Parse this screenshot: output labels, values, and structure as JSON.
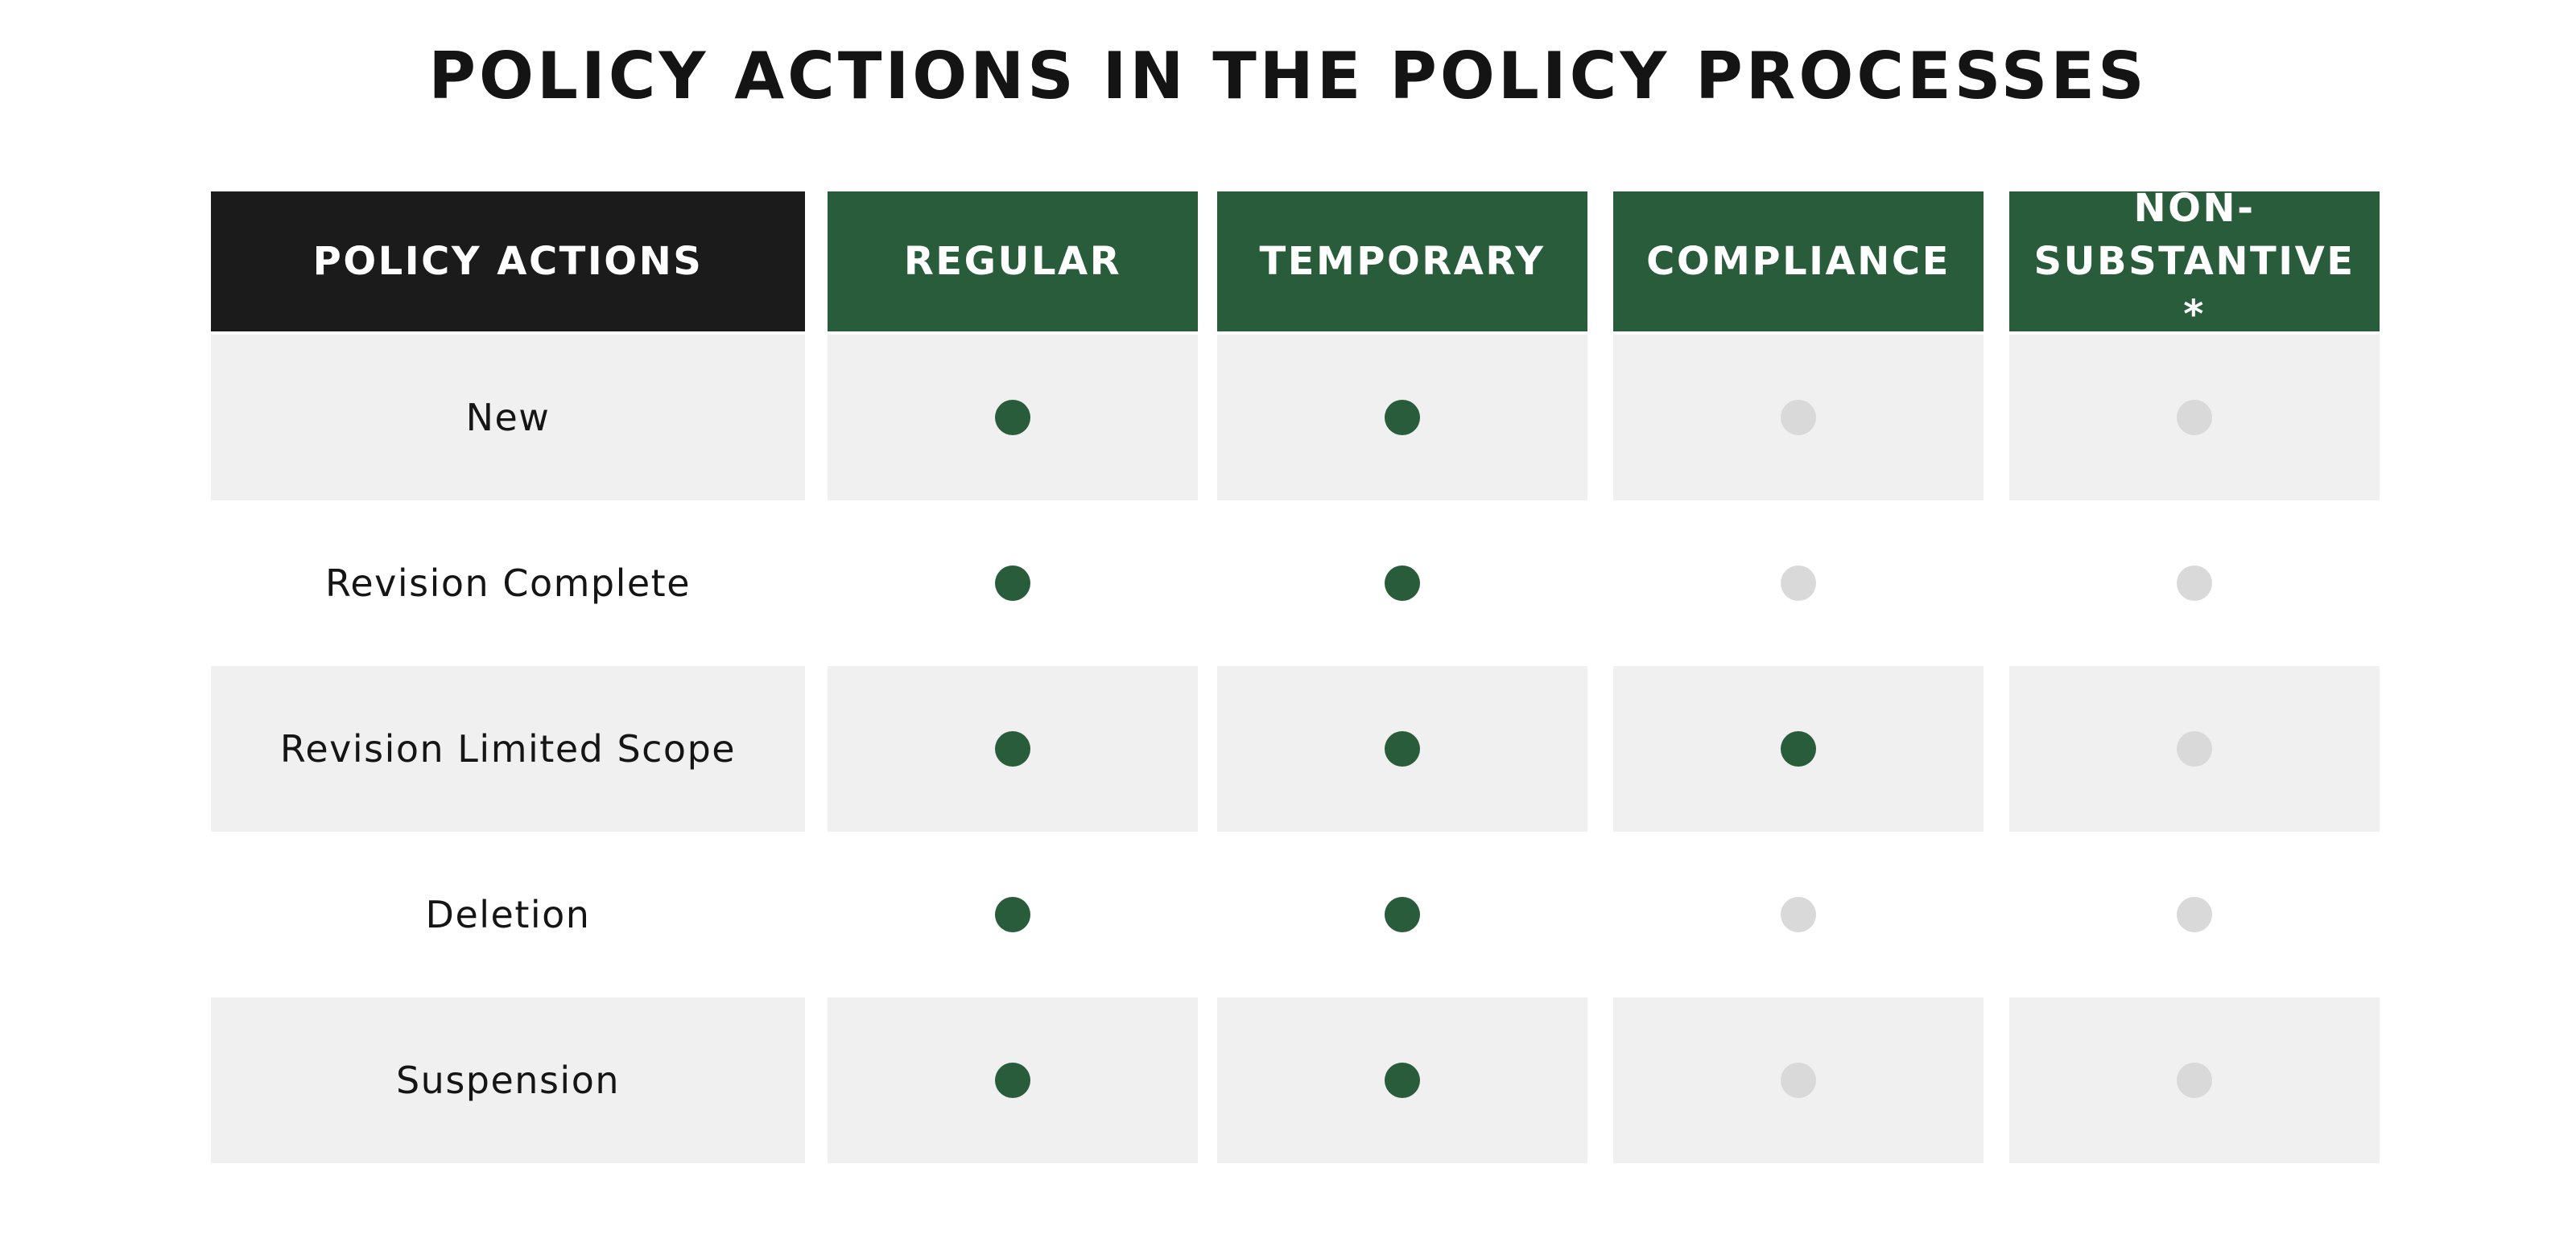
{
  "title": "POLICY ACTIONS IN THE POLICY PROCESSES",
  "colors": {
    "header_dark": "#1b1b1b",
    "header_green": "#285c3a",
    "dot_on": "#285c3a",
    "dot_off": "#d9d9d9",
    "row_shade": "#f0f0f0"
  },
  "chart_data": {
    "type": "table",
    "title": "POLICY ACTIONS IN THE POLICY PROCESSES",
    "row_header": "POLICY ACTIONS",
    "columns": [
      "REGULAR",
      "TEMPORARY",
      "COMPLIANCE",
      "NON-SUBSTANTIVE*"
    ],
    "rows": [
      {
        "label": "New",
        "values": [
          true,
          true,
          false,
          false
        ]
      },
      {
        "label": "Revision Complete",
        "values": [
          true,
          true,
          false,
          false
        ]
      },
      {
        "label": "Revision Limited Scope",
        "values": [
          true,
          true,
          true,
          false
        ]
      },
      {
        "label": "Deletion",
        "values": [
          true,
          true,
          false,
          false
        ]
      },
      {
        "label": "Suspension",
        "values": [
          true,
          true,
          false,
          false
        ]
      }
    ]
  }
}
